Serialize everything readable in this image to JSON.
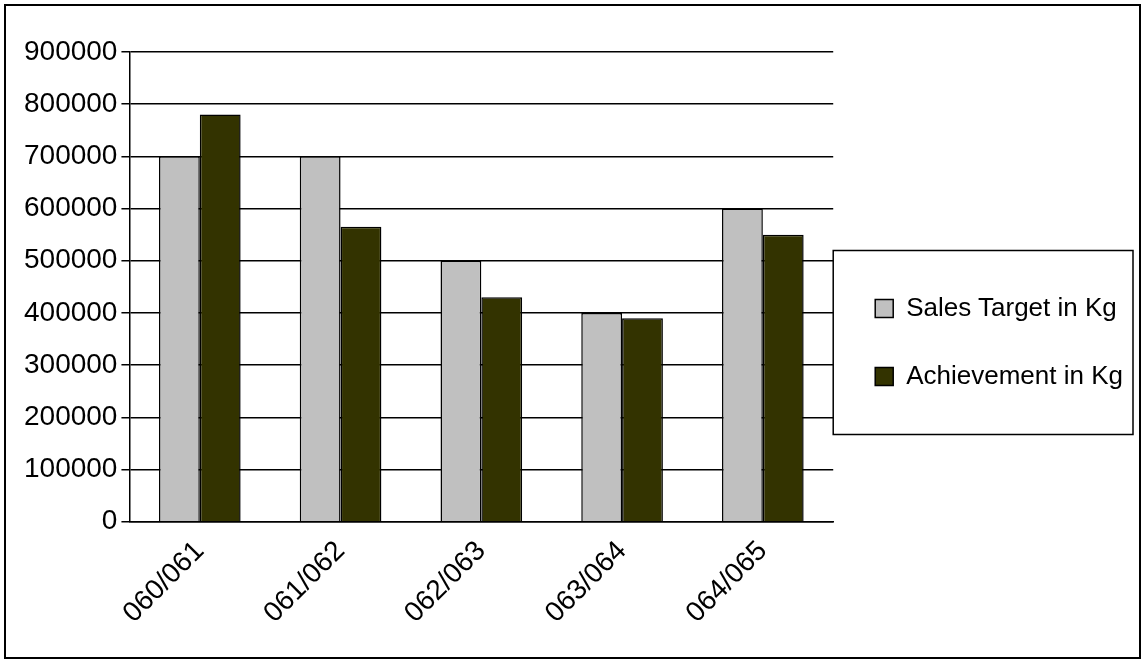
{
  "chart_data": {
    "type": "bar",
    "categories": [
      "060/061",
      "061/062",
      "062/063",
      "063/064",
      "064/065"
    ],
    "series": [
      {
        "name": "Sales Target in Kg",
        "color": "#c0c0c0",
        "values": [
          700000,
          700000,
          500000,
          400000,
          600000
        ]
      },
      {
        "name": "Achievement in Kg",
        "color": "#333300",
        "values": [
          780000,
          565000,
          430000,
          390000,
          550000
        ]
      }
    ],
    "ylim": [
      0,
      900000
    ],
    "yticks": [
      0,
      100000,
      200000,
      300000,
      400000,
      500000,
      600000,
      700000,
      800000,
      900000
    ],
    "grid": "y",
    "legend": "right"
  }
}
